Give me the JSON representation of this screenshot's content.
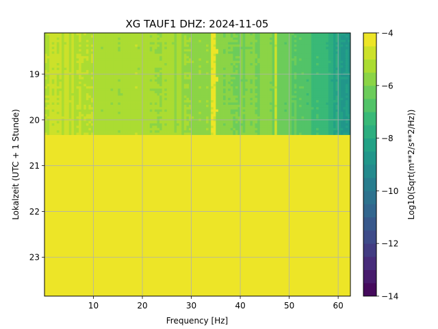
{
  "chart_data": {
    "type": "heatmap",
    "title": "XG TAUF1  DHZ: 2024-11-05",
    "xlabel": "Frequency [Hz]",
    "ylabel": "Lokalzeit (UTC + 1 Stunde)",
    "colorbar_label": "Log10(Sqrt(m**2/s**2/Hz))",
    "xlim": [
      0,
      62.5
    ],
    "ylim": [
      18.1,
      23.85
    ],
    "y_inverted": true,
    "xticks": [
      10,
      20,
      30,
      40,
      50,
      60
    ],
    "xtick_labels": [
      "10",
      "20",
      "30",
      "40",
      "50",
      "60"
    ],
    "yticks": [
      19,
      20,
      21,
      22,
      23
    ],
    "ytick_labels": [
      "19",
      "20",
      "21",
      "22",
      "23"
    ],
    "grid": true,
    "colormap": "viridis",
    "color_range": [
      -14,
      -4
    ],
    "color_levels": 20,
    "colorbar_ticks": [
      -4,
      -6,
      -8,
      -10,
      -12,
      -14
    ],
    "colorbar_tick_labels": [
      "−4",
      "−6",
      "−8",
      "−10",
      "−12",
      "−14"
    ],
    "data_end_time": 20.33,
    "no_data_value": -4,
    "profile_freq": [
      0,
      5,
      10,
      15,
      20,
      25,
      30,
      35,
      40,
      45,
      50,
      52,
      55,
      58,
      60,
      62.5
    ],
    "profile_value": [
      -4.9,
      -5.0,
      -5.2,
      -5.3,
      -5.25,
      -5.4,
      -5.6,
      -5.8,
      -5.9,
      -6.0,
      -6.3,
      -6.6,
      -7.0,
      -7.6,
      -8.2,
      -8.8
    ],
    "lines": [
      {
        "f": 34.6,
        "value": -4.3
      },
      {
        "f": 47.3,
        "value": -4.8
      }
    ],
    "spots": [
      {
        "f": 34.6,
        "t": 18.5,
        "value": -4.1
      },
      {
        "f": 34.6,
        "t": 19.8,
        "value": -4.1
      },
      {
        "f": 34.6,
        "t": 19.12,
        "value": -4.4
      }
    ]
  }
}
